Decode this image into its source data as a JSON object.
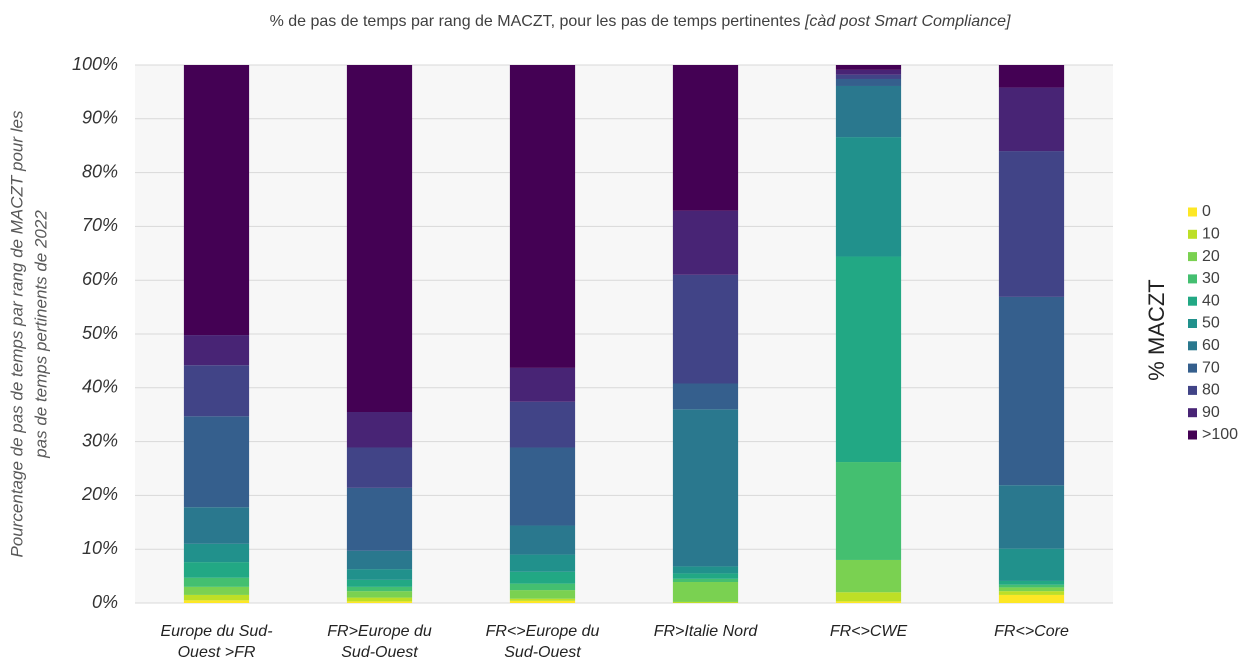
{
  "chart_data": {
    "type": "stacked_bar",
    "title": "% de pas de temps par rang de MACZT, pour les pas de temps pertinentes",
    "title_italic": "[càd post Smart Compliance]",
    "ylabel": [
      "Pourcentage de pas de temps par rang de MACZT pour les",
      "pas de temps pertinents de 2022"
    ],
    "legend_title": "% MACZT",
    "categories": [
      [
        "Europe du Sud-",
        "Ouest >FR"
      ],
      [
        "FR>Europe du",
        "Sud-Ouest"
      ],
      [
        "FR<>Europe du",
        "Sud-Ouest"
      ],
      [
        "FR>Italie Nord"
      ],
      [
        "FR<>CWE"
      ],
      [
        "FR<>Core"
      ]
    ],
    "ylim": [
      0,
      100
    ],
    "yticks": [
      {
        "value": 0,
        "label": "0%"
      },
      {
        "value": 10,
        "label": "10%"
      },
      {
        "value": 20,
        "label": "20%"
      },
      {
        "value": 30,
        "label": "30%"
      },
      {
        "value": 40,
        "label": "40%"
      },
      {
        "value": 50,
        "label": "50%"
      },
      {
        "value": 60,
        "label": "60%"
      },
      {
        "value": 70,
        "label": "70%"
      },
      {
        "value": 80,
        "label": "80%"
      },
      {
        "value": 90,
        "label": "90%"
      },
      {
        "value": 100,
        "label": "100%"
      }
    ],
    "grid": true,
    "legend": "right",
    "series": [
      {
        "name": "0",
        "color": "#fde725",
        "values": [
          0.5,
          0.3,
          0.4,
          0,
          0.3,
          1.5
        ]
      },
      {
        "name": "10",
        "color": "#bddf26",
        "values": [
          1.0,
          0.7,
          0.4,
          0.2,
          1.7,
          0.7
        ]
      },
      {
        "name": "20",
        "color": "#7ad151",
        "values": [
          1.5,
          1.2,
          1.6,
          3.7,
          6.0,
          0.7
        ]
      },
      {
        "name": "30",
        "color": "#44bf70",
        "values": [
          1.7,
          0.8,
          1.2,
          0.6,
          18.2,
          0.5
        ]
      },
      {
        "name": "40",
        "color": "#22a884",
        "values": [
          2.9,
          1.3,
          2.2,
          1.0,
          38.2,
          0.7
        ]
      },
      {
        "name": "50",
        "color": "#21918c",
        "values": [
          3.4,
          2.0,
          3.2,
          1.3,
          22.2,
          6.0
        ]
      },
      {
        "name": "60",
        "color": "#2a788e",
        "values": [
          6.8,
          3.4,
          5.4,
          29.2,
          9.5,
          11.8
        ]
      },
      {
        "name": "70",
        "color": "#355f8d",
        "values": [
          16.9,
          11.7,
          14.5,
          4.8,
          1.3,
          35.0
        ]
      },
      {
        "name": "80",
        "color": "#414487",
        "values": [
          9.5,
          7.5,
          8.5,
          20.2,
          0.8,
          27.1
        ]
      },
      {
        "name": "90",
        "color": "#482475",
        "values": [
          5.6,
          6.6,
          6.3,
          11.9,
          0.9,
          11.8
        ]
      },
      {
        "name": ">100",
        "color": "#440154",
        "values": [
          50.2,
          64.5,
          56.3,
          27.1,
          0.9,
          4.2
        ]
      }
    ]
  }
}
